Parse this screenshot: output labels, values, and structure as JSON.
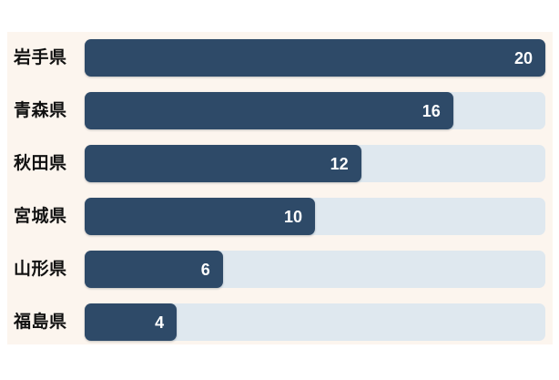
{
  "page": {
    "background": "#ffffff",
    "panel_background": "#fcf5ee"
  },
  "chart_data": {
    "type": "bar",
    "orientation": "horizontal",
    "title": "",
    "xlabel": "",
    "ylabel": "",
    "categories": [
      "岩手県",
      "青森県",
      "秋田県",
      "宮城県",
      "山形県",
      "福島県"
    ],
    "values": [
      20,
      16,
      12,
      10,
      6,
      4
    ],
    "value_labels_position": "inside-end",
    "xlim": [
      0,
      20
    ],
    "grid": false,
    "legend": "none",
    "bar_color": "#2e4a68",
    "track_color": "#dfe8ef",
    "label_color": "#111111",
    "value_label_color": "#ffffff"
  }
}
